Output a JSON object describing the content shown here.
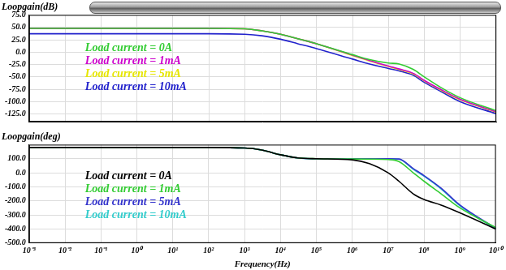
{
  "chart_data": [
    {
      "type": "line",
      "ylabel": "Loopgain(dB)",
      "log": "x",
      "grid": true,
      "legend": "upper left",
      "tick_labels": "y",
      "xlim": [
        0.001,
        10000000000
      ],
      "ylim": [
        -140,
        75
      ],
      "xticks": [
        {
          "value": 0.001,
          "label": "10⁻³"
        },
        {
          "value": 0.01,
          "label": "10⁻²"
        },
        {
          "value": 0.1,
          "label": "10⁻¹"
        },
        {
          "value": 1,
          "label": "10⁰"
        },
        {
          "value": 10,
          "label": "10¹"
        },
        {
          "value": 100,
          "label": "10²"
        },
        {
          "value": 1000,
          "label": "10³"
        },
        {
          "value": 10000,
          "label": "10⁴"
        },
        {
          "value": 100000,
          "label": "10⁵"
        },
        {
          "value": 1000000,
          "label": "10⁶"
        },
        {
          "value": 10000000,
          "label": "10⁷"
        },
        {
          "value": 100000000,
          "label": "10⁸"
        },
        {
          "value": 1000000000,
          "label": "10⁹"
        },
        {
          "value": 10000000000,
          "label": "10¹⁰"
        }
      ],
      "yticks": [
        {
          "value": 75,
          "label": "75.0"
        },
        {
          "value": 50,
          "label": "50.0"
        },
        {
          "value": 25,
          "label": "25.0"
        },
        {
          "value": 0,
          "label": "0.0"
        },
        {
          "value": -25,
          "label": "-25.0"
        },
        {
          "value": -50,
          "label": "-50.0"
        },
        {
          "value": -75,
          "label": "-75.0"
        },
        {
          "value": -100,
          "label": "-100.0"
        },
        {
          "value": -125,
          "label": "-125.0"
        }
      ],
      "x": [
        0.001,
        0.01,
        0.1,
        1,
        10,
        100,
        1000,
        3000,
        10000,
        30000,
        100000,
        1000000,
        3000000,
        10000000,
        20000000,
        50000000,
        100000000,
        300000000,
        1000000000,
        10000000000
      ],
      "series": [
        {
          "name": "Load current = 0A",
          "color": "#33cc33",
          "values": [
            48,
            48,
            48,
            48,
            48,
            48,
            47,
            43,
            36,
            27,
            17,
            -5,
            -15,
            -22,
            -24,
            -35,
            -50,
            -72,
            -92,
            -118
          ]
        },
        {
          "name": "Load current = 1mA",
          "color": "#cc00cc",
          "values": [
            48,
            48,
            48,
            48,
            48,
            48,
            47,
            43,
            36,
            27,
            17,
            -6,
            -17,
            -28,
            -34,
            -43,
            -57,
            -76,
            -95,
            -120
          ]
        },
        {
          "name": "Load current = 5mA",
          "color": "#e6e600",
          "values": [
            48,
            48,
            48,
            48,
            48,
            48,
            47,
            43,
            36,
            27,
            17,
            -7,
            -18,
            -29,
            -35,
            -44,
            -58,
            -77,
            -96,
            -121
          ]
        },
        {
          "name": "Load current = 10mA",
          "color": "#2222cc",
          "values": [
            37,
            37,
            37,
            37,
            37,
            37,
            36,
            33,
            26,
            17,
            7,
            -14,
            -24,
            -33,
            -38,
            -47,
            -61,
            -80,
            -100,
            -124
          ]
        }
      ]
    },
    {
      "type": "line",
      "ylabel": "Loopgain(deg)",
      "xlabel": "Frequency(Hz)",
      "log": "x",
      "grid": true,
      "legend": "upper left",
      "xlim": [
        0.001,
        10000000000
      ],
      "ylim": [
        -500,
        200
      ],
      "xticks": [
        {
          "value": 0.001,
          "label": "10⁻³"
        },
        {
          "value": 0.01,
          "label": "10⁻²"
        },
        {
          "value": 0.1,
          "label": "10⁻¹"
        },
        {
          "value": 1,
          "label": "10⁰"
        },
        {
          "value": 10,
          "label": "10¹"
        },
        {
          "value": 100,
          "label": "10²"
        },
        {
          "value": 1000,
          "label": "10³"
        },
        {
          "value": 10000,
          "label": "10⁴"
        },
        {
          "value": 100000,
          "label": "10⁵"
        },
        {
          "value": 1000000,
          "label": "10⁶"
        },
        {
          "value": 10000000,
          "label": "10⁷"
        },
        {
          "value": 100000000,
          "label": "10⁸"
        },
        {
          "value": 1000000000,
          "label": "10⁹"
        },
        {
          "value": 10000000000,
          "label": "10¹⁰"
        }
      ],
      "yticks": [
        {
          "value": 100,
          "label": "100.0"
        },
        {
          "value": 0,
          "label": "0.0"
        },
        {
          "value": -100,
          "label": "-100.0"
        },
        {
          "value": -200,
          "label": "-200.0"
        },
        {
          "value": -300,
          "label": "-300.0"
        },
        {
          "value": -400,
          "label": "-400.0"
        },
        {
          "value": -500,
          "label": "-500.0"
        }
      ],
      "x": [
        0.001,
        0.01,
        0.1,
        1,
        10,
        100,
        1000,
        3000,
        10000,
        30000,
        100000,
        1000000,
        3000000,
        10000000,
        20000000,
        50000000,
        100000000,
        300000000,
        1000000000,
        10000000000
      ],
      "series": [
        {
          "name": "Load current = 0A",
          "color": "#000000",
          "values": [
            180,
            180,
            180,
            180,
            180,
            180,
            176,
            162,
            128,
            106,
            100,
            92,
            65,
            0,
            -60,
            -150,
            -190,
            -230,
            -285,
            -400
          ]
        },
        {
          "name": "Load current = 1mA",
          "color": "#33cc33",
          "values": [
            180,
            180,
            180,
            180,
            180,
            180,
            176,
            162,
            128,
            106,
            100,
            98,
            97,
            94,
            80,
            0,
            -60,
            -150,
            -250,
            -390
          ]
        },
        {
          "name": "Load current = 5mA",
          "color": "#3333cc",
          "values": [
            180,
            180,
            180,
            180,
            180,
            180,
            176,
            162,
            128,
            106,
            100,
            99,
            100,
            100,
            98,
            30,
            -20,
            -110,
            -230,
            -395
          ]
        },
        {
          "name": "Load current = 10mA",
          "color": "#33cccc",
          "values": [
            180,
            180,
            180,
            180,
            180,
            180,
            176,
            162,
            128,
            106,
            100,
            99,
            100,
            100,
            97,
            25,
            -25,
            -115,
            -235,
            -400
          ]
        }
      ]
    }
  ]
}
